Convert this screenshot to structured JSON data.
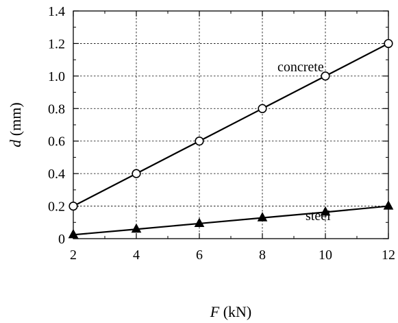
{
  "chart_data": {
    "type": "line",
    "xlabel_var": "F",
    "xlabel_unit": " (kN)",
    "ylabel_var": "d",
    "ylabel_unit": " (mm)",
    "xlim": [
      2,
      12
    ],
    "ylim": [
      0,
      1.4
    ],
    "x_ticks": [
      2,
      4,
      6,
      8,
      10,
      12
    ],
    "y_ticks": [
      0,
      0.2,
      0.4,
      0.6,
      0.8,
      1.0,
      1.2,
      1.4
    ],
    "x_tick_labels": [
      "2",
      "4",
      "6",
      "8",
      "10",
      "12"
    ],
    "y_tick_labels": [
      "0",
      "0.2",
      "0.4",
      "0.6",
      "0.8",
      "1.0",
      "1.2",
      "1.4"
    ],
    "grid": true,
    "series": [
      {
        "name": "concrete",
        "marker": "open-circle",
        "x": [
          2,
          4,
          6,
          8,
          10,
          12
        ],
        "y": [
          0.2,
          0.4,
          0.6,
          0.8,
          1.0,
          1.2
        ]
      },
      {
        "name": "steel",
        "marker": "filled-triangle",
        "x": [
          2,
          4,
          6,
          8,
          10,
          12
        ],
        "y": [
          0.024,
          0.058,
          0.093,
          0.128,
          0.163,
          0.2
        ]
      }
    ]
  }
}
